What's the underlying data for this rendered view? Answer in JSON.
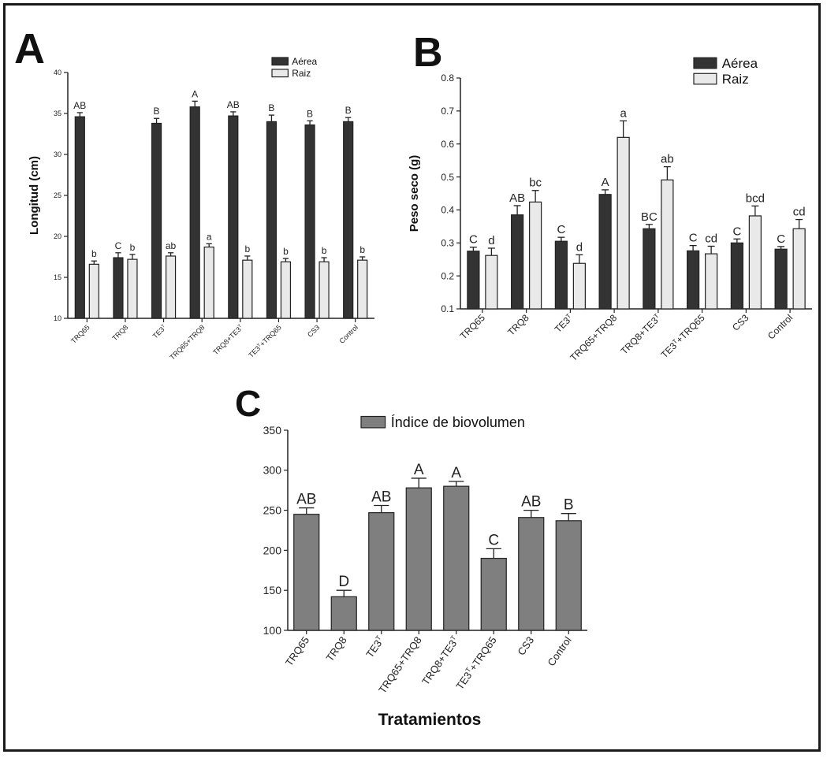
{
  "chart_data": [
    {
      "panel": "A",
      "type": "bar",
      "ylabel": "Longitud (cm)",
      "xlabel": "",
      "ylim": [
        10,
        40
      ],
      "yticks": [
        "10",
        "15",
        "20",
        "25",
        "30",
        "35",
        "40"
      ],
      "categories": [
        {
          "base": "TRQ65",
          "sup": "",
          "tail": ""
        },
        {
          "base": "TRQ8",
          "sup": "",
          "tail": ""
        },
        {
          "base": "TE3",
          "sup": "T",
          "tail": ""
        },
        {
          "base": "TRQ65+TRQ8",
          "sup": "",
          "tail": ""
        },
        {
          "base": "TRQ8+TE3",
          "sup": "T",
          "tail": ""
        },
        {
          "base": "TE3",
          "sup": "T",
          "tail": "+TRQ65"
        },
        {
          "base": "CS3",
          "sup": "",
          "tail": ""
        },
        {
          "base": "Control",
          "sup": "",
          "tail": ""
        }
      ],
      "series": [
        {
          "name": "Aérea",
          "color": "#333333",
          "values": [
            34.6,
            17.4,
            33.8,
            35.8,
            34.7,
            34.0,
            33.6,
            34.0
          ],
          "errors": [
            0.5,
            0.6,
            0.6,
            0.7,
            0.5,
            0.8,
            0.5,
            0.5
          ],
          "letters": [
            "AB",
            "C",
            "B",
            "A",
            "AB",
            "B",
            "B",
            "B"
          ]
        },
        {
          "name": "Raiz",
          "color": "#e9e9e9",
          "values": [
            16.6,
            17.2,
            17.6,
            18.7,
            17.1,
            16.9,
            16.9,
            17.1
          ],
          "errors": [
            0.4,
            0.6,
            0.4,
            0.4,
            0.5,
            0.4,
            0.5,
            0.4
          ],
          "letters": [
            "b",
            "b",
            "ab",
            "a",
            "b",
            "b",
            "b",
            "b"
          ]
        }
      ]
    },
    {
      "panel": "B",
      "type": "bar",
      "ylabel": "Peso seco (g)",
      "xlabel": "",
      "ylim": [
        0.1,
        0.8
      ],
      "yticks": [
        "0.1",
        "0.2",
        "0.3",
        "0.4",
        "0.5",
        "0.6",
        "0.7",
        "0.8"
      ],
      "categories": [
        {
          "base": "TRQ65",
          "sup": "",
          "tail": ""
        },
        {
          "base": "TRQ8",
          "sup": "",
          "tail": ""
        },
        {
          "base": "TE3",
          "sup": "T",
          "tail": ""
        },
        {
          "base": "TRQ65+TRQ8",
          "sup": "",
          "tail": ""
        },
        {
          "base": "TRQ8+TE3",
          "sup": "T",
          "tail": ""
        },
        {
          "base": "TE3",
          "sup": "T",
          "tail": "+TRQ65"
        },
        {
          "base": "CS3",
          "sup": "",
          "tail": ""
        },
        {
          "base": "Control",
          "sup": "",
          "tail": ""
        }
      ],
      "series": [
        {
          "name": "Aérea",
          "color": "#333333",
          "values": [
            0.275,
            0.385,
            0.305,
            0.447,
            0.343,
            0.276,
            0.3,
            0.281
          ],
          "errors": [
            0.012,
            0.028,
            0.012,
            0.014,
            0.013,
            0.016,
            0.012,
            0.008
          ],
          "letters": [
            "C",
            "AB",
            "C",
            "A",
            "BC",
            "C",
            "C",
            "C"
          ]
        },
        {
          "name": "Raiz",
          "color": "#e9e9e9",
          "values": [
            0.262,
            0.424,
            0.238,
            0.62,
            0.491,
            0.267,
            0.382,
            0.343
          ],
          "errors": [
            0.022,
            0.035,
            0.026,
            0.05,
            0.04,
            0.023,
            0.03,
            0.028
          ],
          "letters": [
            "d",
            "bc",
            "d",
            "a",
            "ab",
            "cd",
            "bcd",
            "cd"
          ]
        }
      ]
    },
    {
      "panel": "C",
      "type": "bar",
      "ylabel": "",
      "xlabel": "Tratamientos",
      "ylim": [
        100,
        350
      ],
      "yticks": [
        "100",
        "150",
        "200",
        "250",
        "300",
        "350"
      ],
      "categories": [
        {
          "base": "TRQ65",
          "sup": "",
          "tail": ""
        },
        {
          "base": "TRQ8",
          "sup": "",
          "tail": ""
        },
        {
          "base": "TE3",
          "sup": "T",
          "tail": ""
        },
        {
          "base": "TRQ65+TRQ8",
          "sup": "",
          "tail": ""
        },
        {
          "base": "TRQ8+TE3",
          "sup": "T",
          "tail": ""
        },
        {
          "base": "TE3",
          "sup": "T",
          "tail": "+TRQ65"
        },
        {
          "base": "CS3",
          "sup": "",
          "tail": ""
        },
        {
          "base": "Control",
          "sup": "",
          "tail": ""
        }
      ],
      "series": [
        {
          "name": "Índice de biovolumen",
          "color": "#7f7f7f",
          "values": [
            245,
            142,
            247,
            278,
            280,
            190,
            241,
            237
          ],
          "errors": [
            8,
            8,
            9,
            12,
            6,
            12,
            9,
            9
          ],
          "letters": [
            "AB",
            "D",
            "AB",
            "A",
            "A",
            "C",
            "AB",
            "B"
          ]
        }
      ]
    }
  ]
}
